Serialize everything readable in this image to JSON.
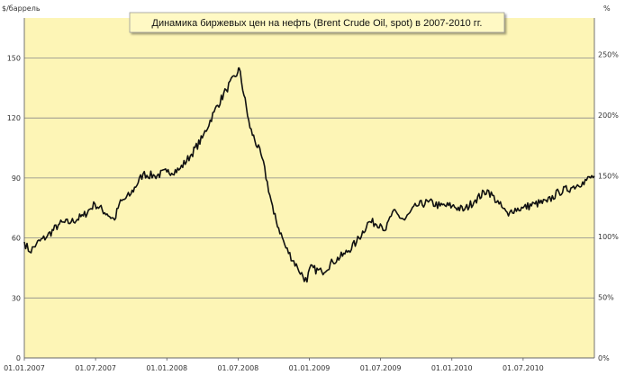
{
  "chart_data": {
    "type": "line",
    "title": "Динамика биржевых цен на нефть (Brent Crude Oil, spot) в 2007-2010 гг.",
    "ylabel_left": "$/баррель",
    "ylabel_right": "%",
    "ylim_left": [
      0,
      170
    ],
    "ylim_right": [
      0,
      280
    ],
    "yticks_left": [
      0,
      30,
      60,
      90,
      120,
      150
    ],
    "yticks_right": [
      "0%",
      "50%",
      "100%",
      "150%",
      "200%",
      "250%"
    ],
    "yticks_right_values": [
      0,
      50,
      100,
      150,
      200,
      250
    ],
    "xticks": [
      "01.01.2007",
      "01.07.2007",
      "01.01.2008",
      "01.07.2008",
      "01.01.2009",
      "01.07.2009",
      "01.01.2010",
      "01.07.2010"
    ],
    "grid": true,
    "legend": "none",
    "colors": {
      "plot_bg": "#fdf5b6",
      "line": "#111111",
      "grid": "#888888",
      "title_bg": "#fff9c4"
    },
    "series": [
      {
        "x": [
          "2007-01-01",
          "2007-01-15",
          "2007-02-01",
          "2007-03-01",
          "2007-04-01",
          "2007-05-01",
          "2007-06-01",
          "2007-07-01",
          "2007-08-01",
          "2007-08-20",
          "2007-09-01",
          "2007-10-01",
          "2007-11-01",
          "2007-12-01",
          "2008-01-01",
          "2008-02-01",
          "2008-03-01",
          "2008-04-01",
          "2008-05-01",
          "2008-06-01",
          "2008-07-01",
          "2008-07-04",
          "2008-08-01",
          "2008-09-01",
          "2008-10-01",
          "2008-11-01",
          "2008-12-01",
          "2008-12-25",
          "2009-01-01",
          "2009-02-01",
          "2009-03-01",
          "2009-04-01",
          "2009-05-01",
          "2009-06-01",
          "2009-07-01",
          "2009-07-15",
          "2009-08-01",
          "2009-09-01",
          "2009-10-01",
          "2009-11-01",
          "2009-12-01",
          "2010-01-01",
          "2010-02-01",
          "2010-03-01",
          "2010-04-01",
          "2010-05-01",
          "2010-05-25",
          "2010-06-01",
          "2010-07-01",
          "2010-08-01",
          "2010-09-01",
          "2010-10-01",
          "2010-11-01",
          "2010-12-01",
          "2010-12-31"
        ],
        "y": [
          58,
          53,
          57,
          61,
          67,
          68,
          71,
          77,
          72,
          69,
          77,
          82,
          92,
          91,
          93,
          94,
          101,
          110,
          123,
          134,
          143,
          145,
          115,
          100,
          72,
          55,
          45,
          38,
          45,
          43,
          48,
          52,
          58,
          68,
          67,
          64,
          73,
          69,
          76,
          78,
          76,
          76,
          74,
          79,
          84,
          77,
          71,
          74,
          75,
          77,
          78,
          83,
          85,
          88,
          91
        ]
      }
    ]
  }
}
